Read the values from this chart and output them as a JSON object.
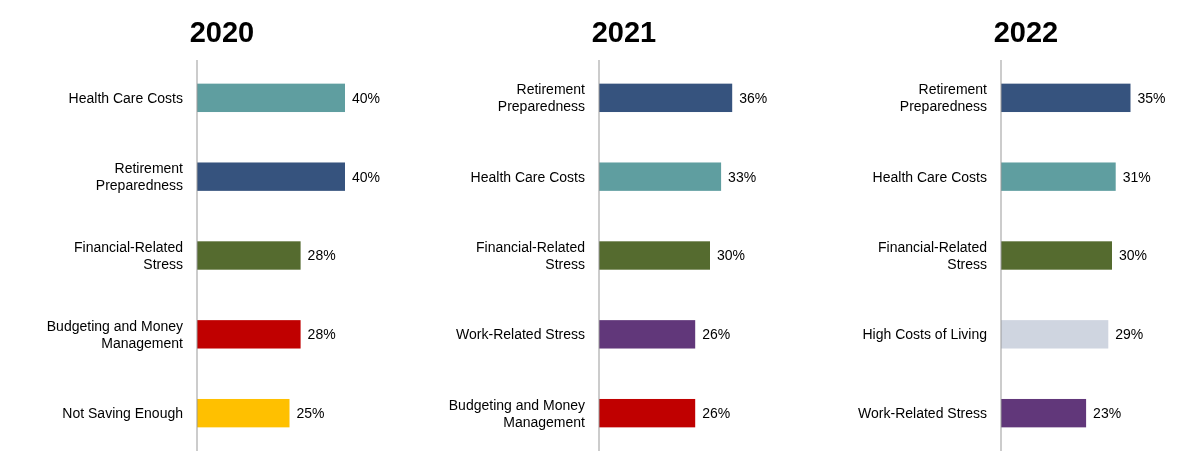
{
  "chart_data": [
    {
      "type": "bar",
      "orientation": "horizontal",
      "title": "2020",
      "categories": [
        "Health Care Costs",
        "Retirement Preparedness",
        "Financial-Related Stress",
        "Budgeting and Money Management",
        "Not Saving Enough"
      ],
      "values": [
        40,
        40,
        28,
        28,
        25
      ],
      "colors": [
        "#5f9ea0",
        "#36537e",
        "#556b2f",
        "#c00000",
        "#ffc000"
      ],
      "value_labels": [
        "40%",
        "40%",
        "28%",
        "28%",
        "25%"
      ],
      "tick_labels": "y"
    },
    {
      "type": "bar",
      "orientation": "horizontal",
      "title": "2021",
      "categories": [
        "Retirement Preparedness",
        "Health Care Costs",
        "Financial-Related Stress",
        "Work-Related Stress",
        "Budgeting and Money Management"
      ],
      "values": [
        36,
        33,
        30,
        26,
        26
      ],
      "colors": [
        "#36537e",
        "#5f9ea0",
        "#556b2f",
        "#61377a",
        "#c00000"
      ],
      "value_labels": [
        "36%",
        "33%",
        "30%",
        "26%",
        "26%"
      ],
      "tick_labels": "y"
    },
    {
      "type": "bar",
      "orientation": "horizontal",
      "title": "2022",
      "categories": [
        "Retirement Preparedness",
        "Health Care Costs",
        "Financial-Related Stress",
        "High Costs of Living",
        "Work-Related Stress"
      ],
      "values": [
        35,
        31,
        30,
        29,
        23
      ],
      "colors": [
        "#36537e",
        "#5f9ea0",
        "#556b2f",
        "#cfd5e0",
        "#61377a"
      ],
      "value_labels": [
        "35%",
        "31%",
        "30%",
        "29%",
        "23%"
      ],
      "tick_labels": "y"
    }
  ]
}
